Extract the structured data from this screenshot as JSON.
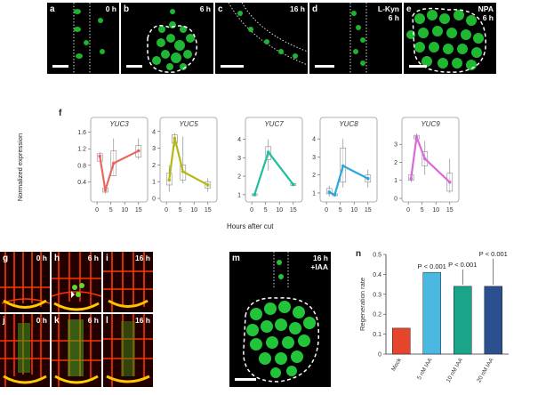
{
  "top_panels": [
    {
      "letter": "a",
      "time": "0 h",
      "extra": ""
    },
    {
      "letter": "b",
      "time": "6 h",
      "extra": ""
    },
    {
      "letter": "c",
      "time": "16 h",
      "extra": ""
    },
    {
      "letter": "d",
      "time": "6 h",
      "extra": "L-Kyn"
    },
    {
      "letter": "e",
      "time": "6 h",
      "extra": "NPA"
    }
  ],
  "figure_f": {
    "panel_letter": "f",
    "ylabel": "Normalized expression",
    "xlabel": "Hours after cut"
  },
  "chart_data": [
    {
      "type": "line",
      "title": "YUC3",
      "color": "#e8685f",
      "x": [
        1,
        3,
        6,
        15
      ],
      "values": [
        1.02,
        0.2,
        0.85,
        1.15
      ],
      "yticks": [
        0.4,
        0.8,
        1.2,
        1.6
      ],
      "ylim": [
        0,
        1.7
      ],
      "xticks": [
        0,
        5,
        10,
        15
      ],
      "xlim": [
        -1,
        17
      ],
      "box_whiskers": [
        [
          0.95,
          1.12
        ],
        [
          0.12,
          0.28
        ],
        [
          0.55,
          1.45
        ],
        [
          0.95,
          1.45
        ]
      ],
      "box_q": [
        [
          0.9,
          1.08
        ],
        [
          0.15,
          0.25
        ],
        [
          0.55,
          1.15
        ],
        [
          1.0,
          1.28
        ]
      ]
    },
    {
      "type": "line",
      "title": "YUC5",
      "color": "#b5b814",
      "x": [
        1,
        3,
        6,
        15
      ],
      "values": [
        1.1,
        3.6,
        1.6,
        0.8
      ],
      "yticks": [
        0,
        1,
        2,
        3,
        4
      ],
      "ylim": [
        0,
        4.2
      ],
      "xticks": [
        0,
        5,
        10,
        15
      ],
      "xlim": [
        -1,
        17
      ],
      "box_whiskers": [
        [
          0.4,
          2.0
        ],
        [
          3.1,
          3.9
        ],
        [
          0.9,
          3.7
        ],
        [
          0.4,
          1.2
        ]
      ],
      "box_q": [
        [
          0.8,
          1.5
        ],
        [
          3.3,
          3.8
        ],
        [
          1.1,
          2.0
        ],
        [
          0.6,
          1.0
        ]
      ]
    },
    {
      "type": "line",
      "title": "YUC7",
      "color": "#1dbfa0",
      "x": [
        1,
        6,
        15
      ],
      "values": [
        1.0,
        3.3,
        1.55
      ],
      "yticks": [
        1,
        2,
        3,
        4
      ],
      "ylim": [
        0.8,
        4.6
      ],
      "xticks": [
        0,
        5,
        10,
        15
      ],
      "xlim": [
        -1,
        17
      ],
      "box_whiskers": [
        [
          0.9,
          1.1
        ],
        [
          2.3,
          4.0
        ],
        [
          1.45,
          1.65
        ]
      ],
      "box_q": [
        [
          0.95,
          1.05
        ],
        [
          2.9,
          3.6
        ],
        [
          1.5,
          1.6
        ]
      ]
    },
    {
      "type": "line",
      "title": "YUC8",
      "color": "#2aa8dc",
      "x": [
        1,
        3,
        6,
        15
      ],
      "values": [
        1.05,
        0.9,
        2.5,
        1.8
      ],
      "yticks": [
        1,
        2,
        3,
        4
      ],
      "ylim": [
        0.7,
        4.6
      ],
      "xticks": [
        0,
        5,
        10,
        15
      ],
      "xlim": [
        -1,
        17
      ],
      "box_whiskers": [
        [
          0.8,
          1.4
        ],
        [
          0.8,
          1.0
        ],
        [
          1.3,
          4.0
        ],
        [
          1.3,
          2.3
        ]
      ],
      "box_q": [
        [
          0.95,
          1.25
        ],
        [
          0.85,
          0.95
        ],
        [
          1.6,
          3.5
        ],
        [
          1.6,
          2.0
        ]
      ]
    },
    {
      "type": "line",
      "title": "YUC9",
      "color": "#d86ad8",
      "x": [
        1,
        3,
        6,
        15
      ],
      "values": [
        1.1,
        3.4,
        2.2,
        0.9
      ],
      "yticks": [
        0,
        1,
        2,
        3
      ],
      "ylim": [
        0,
        3.9
      ],
      "xticks": [
        0,
        5,
        10,
        15
      ],
      "xlim": [
        -1,
        17
      ],
      "box_whiskers": [
        [
          0.9,
          1.5
        ],
        [
          3.1,
          3.6
        ],
        [
          1.3,
          3.2
        ],
        [
          0.3,
          2.2
        ]
      ],
      "box_q": [
        [
          1.0,
          1.3
        ],
        [
          3.3,
          3.5
        ],
        [
          1.8,
          2.6
        ],
        [
          0.4,
          1.4
        ]
      ]
    },
    {
      "type": "bar",
      "title": "n",
      "ylabel": "Regeneration rate",
      "categories": [
        "Mock",
        "5 nM IAA",
        "10 nM IAA",
        "20 nM IAA"
      ],
      "values": [
        0.13,
        0.41,
        0.34,
        0.34
      ],
      "colors": [
        "#e5452a",
        "#4ab8e0",
        "#1aa58a",
        "#2b4f8f"
      ],
      "yticks": [
        0,
        0.1,
        0.2,
        0.3,
        0.4,
        0.5
      ],
      "ylim": [
        0,
        0.5
      ],
      "annotations": [
        "P < 0.001",
        "P < 0.001",
        "P < 0.001"
      ]
    }
  ],
  "bottom_panels": [
    {
      "letter": "g",
      "time": "0 h"
    },
    {
      "letter": "h",
      "time": "6 h"
    },
    {
      "letter": "i",
      "time": "16 h"
    },
    {
      "letter": "j",
      "time": "0 h"
    },
    {
      "letter": "k",
      "time": "6 h"
    },
    {
      "letter": "l",
      "time": "16 h"
    },
    {
      "letter": "m",
      "time": "16 h",
      "extra": "+IAA"
    }
  ],
  "panel_n_letter": "n"
}
